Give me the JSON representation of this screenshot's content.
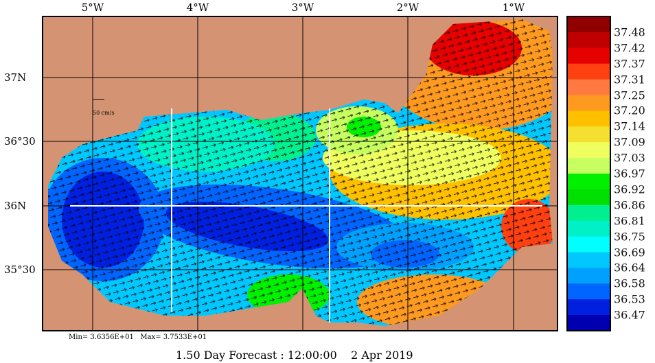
{
  "map": {
    "lon_labels": [
      "5°W",
      "4°W",
      "3°W",
      "2°W",
      "1°W"
    ],
    "lat_labels": [
      "37N",
      "36°30",
      "36N",
      "35°30"
    ],
    "scale_label": "50 cm/s",
    "land_color": "#d49473",
    "variable": "salinity"
  },
  "colorbar": {
    "colors": [
      "#900000",
      "#c00000",
      "#e60000",
      "#ff4010",
      "#ff7a40",
      "#ff9a20",
      "#ffc000",
      "#f5e030",
      "#f0ff60",
      "#c8ff60",
      "#00f000",
      "#00e000",
      "#00f090",
      "#00f0c8",
      "#00ffff",
      "#00c8ff",
      "#00a0ff",
      "#0064ff",
      "#0020e0",
      "#0000b0"
    ],
    "labels": [
      "37.48",
      "37.42",
      "37.37",
      "37.31",
      "37.25",
      "37.20",
      "37.14",
      "37.09",
      "37.03",
      "36.97",
      "36.92",
      "36.86",
      "36.81",
      "36.75",
      "36.69",
      "36.64",
      "36.58",
      "36.53",
      "36.47"
    ]
  },
  "stats": {
    "min_max": "Min= 3.6356E+01   Max= 3.7533E+01"
  },
  "footer": {
    "title": "1.50 Day Forecast : 12:00:00    2 Apr 2019"
  }
}
